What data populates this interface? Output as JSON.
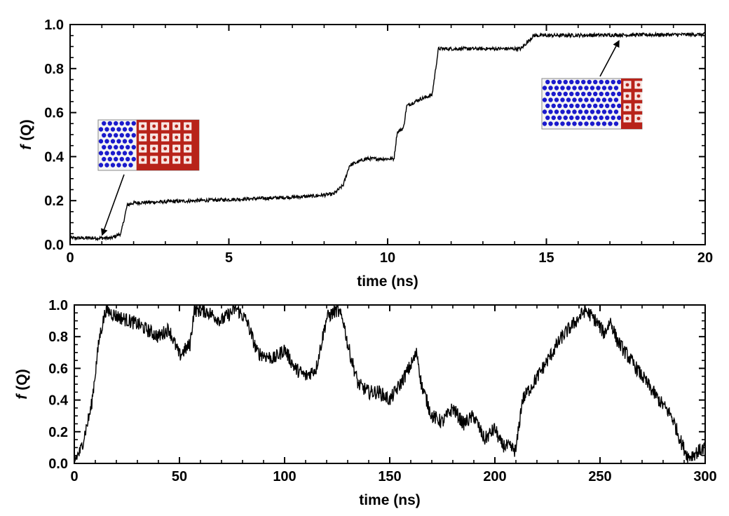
{
  "chart_data": [
    {
      "type": "line",
      "panel": "top",
      "xlabel": "time (ns)",
      "ylabel_italic": "f",
      "ylabel_rest": " (Q)",
      "xlim": [
        0,
        20
      ],
      "ylim": [
        0,
        1.0
      ],
      "xticks": [
        0,
        5,
        10,
        15,
        20
      ],
      "xtick_labels": [
        "0",
        "5",
        "10",
        "15",
        "20"
      ],
      "yticks": [
        0,
        0.2,
        0.4,
        0.6,
        0.8,
        1.0
      ],
      "ytick_labels": [
        "0.0",
        "0.2",
        "0.4",
        "0.6",
        "0.8",
        "1.0"
      ],
      "line_color": "#000000",
      "series": [
        {
          "name": "f(Q)",
          "noise": 0.008,
          "points": [
            [
              0,
              0.03
            ],
            [
              1.3,
              0.03
            ],
            [
              1.6,
              0.05
            ],
            [
              1.8,
              0.18
            ],
            [
              2.0,
              0.19
            ],
            [
              4,
              0.2
            ],
            [
              6,
              0.21
            ],
            [
              7.6,
              0.22
            ],
            [
              8.3,
              0.23
            ],
            [
              8.6,
              0.27
            ],
            [
              8.8,
              0.36
            ],
            [
              9.3,
              0.39
            ],
            [
              10.2,
              0.39
            ],
            [
              10.3,
              0.51
            ],
            [
              10.5,
              0.53
            ],
            [
              10.6,
              0.63
            ],
            [
              11.0,
              0.66
            ],
            [
              11.4,
              0.68
            ],
            [
              11.6,
              0.89
            ],
            [
              14.2,
              0.89
            ],
            [
              14.6,
              0.95
            ],
            [
              20,
              0.955
            ]
          ]
        }
      ],
      "insets": [
        {
          "name": "inset-low-crystal",
          "blue_fraction": 0.38,
          "blue_color": "#1a1acc",
          "red_color": "#b8231a",
          "arrow_points_to": [
            1.0,
            0.04
          ]
        },
        {
          "name": "inset-high-crystal",
          "blue_fraction": 0.79,
          "blue_color": "#1a1acc",
          "red_color": "#b8231a",
          "arrow_points_to": [
            17.3,
            0.93
          ]
        }
      ]
    },
    {
      "type": "line",
      "panel": "bottom",
      "xlabel": "time (ns)",
      "ylabel_italic": "f",
      "ylabel_rest": " (Q)",
      "xlim": [
        0,
        300
      ],
      "ylim": [
        0,
        1.0
      ],
      "xticks": [
        0,
        50,
        100,
        150,
        200,
        250,
        300
      ],
      "xtick_labels": [
        "0",
        "50",
        "100",
        "150",
        "200",
        "250",
        "300"
      ],
      "yticks": [
        0,
        0.2,
        0.4,
        0.6,
        0.8,
        1.0
      ],
      "ytick_labels": [
        "0.0",
        "0.2",
        "0.4",
        "0.6",
        "0.8",
        "1.0"
      ],
      "line_color": "#000000",
      "series": [
        {
          "name": "f(Q)",
          "noise": 0.045,
          "points": [
            [
              0,
              0.02
            ],
            [
              3,
              0.08
            ],
            [
              8,
              0.35
            ],
            [
              12,
              0.8
            ],
            [
              15,
              0.97
            ],
            [
              20,
              0.93
            ],
            [
              30,
              0.88
            ],
            [
              40,
              0.8
            ],
            [
              45,
              0.85
            ],
            [
              50,
              0.68
            ],
            [
              55,
              0.75
            ],
            [
              57,
              0.97
            ],
            [
              63,
              0.96
            ],
            [
              70,
              0.9
            ],
            [
              77,
              0.98
            ],
            [
              82,
              0.9
            ],
            [
              87,
              0.7
            ],
            [
              95,
              0.66
            ],
            [
              100,
              0.72
            ],
            [
              105,
              0.6
            ],
            [
              110,
              0.55
            ],
            [
              115,
              0.6
            ],
            [
              120,
              0.92
            ],
            [
              125,
              0.97
            ],
            [
              128,
              0.9
            ],
            [
              130,
              0.75
            ],
            [
              135,
              0.5
            ],
            [
              140,
              0.45
            ],
            [
              145,
              0.45
            ],
            [
              150,
              0.4
            ],
            [
              155,
              0.5
            ],
            [
              160,
              0.62
            ],
            [
              163,
              0.7
            ],
            [
              165,
              0.5
            ],
            [
              170,
              0.3
            ],
            [
              175,
              0.26
            ],
            [
              180,
              0.35
            ],
            [
              185,
              0.25
            ],
            [
              190,
              0.3
            ],
            [
              195,
              0.15
            ],
            [
              200,
              0.22
            ],
            [
              203,
              0.12
            ],
            [
              207,
              0.1
            ],
            [
              210,
              0.08
            ],
            [
              213,
              0.4
            ],
            [
              218,
              0.5
            ],
            [
              225,
              0.65
            ],
            [
              232,
              0.8
            ],
            [
              240,
              0.92
            ],
            [
              243,
              0.97
            ],
            [
              248,
              0.9
            ],
            [
              252,
              0.82
            ],
            [
              255,
              0.9
            ],
            [
              258,
              0.78
            ],
            [
              262,
              0.7
            ],
            [
              270,
              0.55
            ],
            [
              278,
              0.4
            ],
            [
              284,
              0.3
            ],
            [
              289,
              0.12
            ],
            [
              292,
              0.04
            ],
            [
              296,
              0.07
            ],
            [
              300,
              0.1
            ]
          ]
        }
      ]
    }
  ]
}
